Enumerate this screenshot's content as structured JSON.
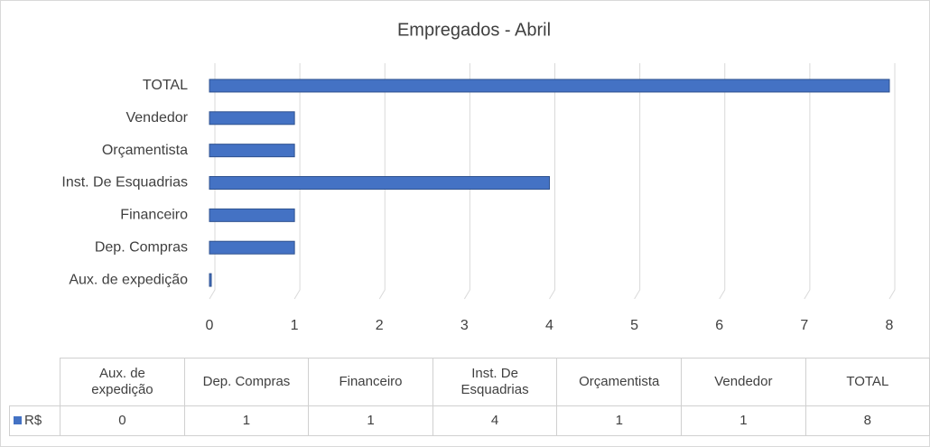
{
  "chart_data": {
    "type": "bar",
    "orientation": "horizontal",
    "title": "Empregados - Abril",
    "categories": [
      "Aux. de expedição",
      "Dep. Compras",
      "Financeiro",
      "Inst. De Esquadrias",
      "Orçamentista",
      "Vendedor",
      "TOTAL"
    ],
    "series": [
      {
        "name": "R$",
        "color": "#4472c4",
        "values": [
          0,
          1,
          1,
          4,
          1,
          1,
          8
        ]
      }
    ],
    "xlim": [
      0,
      8
    ],
    "xticks": [
      0,
      1,
      2,
      3,
      4,
      5,
      6,
      7,
      8
    ],
    "grid": true,
    "data_table": true
  }
}
